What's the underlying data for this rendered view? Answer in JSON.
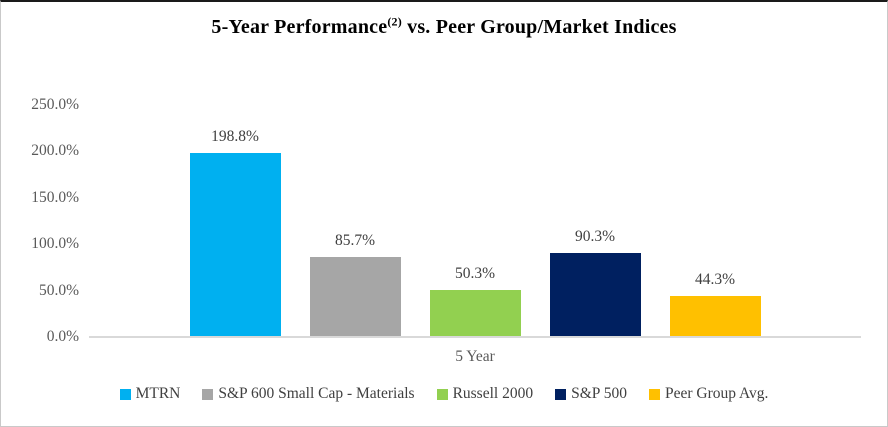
{
  "title": {
    "prefix": "5-Year Performance",
    "superscript": "(2)",
    "suffix": " vs. Peer Group/Market Indices"
  },
  "chart_data": {
    "type": "bar",
    "title": "5-Year Performance(2) vs. Peer Group/Market Indices",
    "categories": [
      "5 Year"
    ],
    "series": [
      {
        "name": "MTRN",
        "values": [
          198.8
        ],
        "label": "198.8%",
        "color": "#00B0F0"
      },
      {
        "name": "S&P 600 Small Cap - Materials",
        "values": [
          85.7
        ],
        "label": "85.7%",
        "color": "#A6A6A6"
      },
      {
        "name": "Russell 2000",
        "values": [
          50.3
        ],
        "label": "50.3%",
        "color": "#92D050"
      },
      {
        "name": "S&P 500",
        "values": [
          90.3
        ],
        "label": "90.3%",
        "color": "#002060"
      },
      {
        "name": "Peer Group Avg.",
        "values": [
          44.3
        ],
        "label": "44.3%",
        "color": "#FFC000"
      }
    ],
    "xlabel": "5 Year",
    "ylabel": "",
    "ylim": [
      0,
      250
    ],
    "ytick_step": 50,
    "ytick_labels_top_down": [
      "250.0%",
      "200.0%",
      "150.0%",
      "100.0%",
      "50.0%",
      "0.0%"
    ],
    "grid": false,
    "legend_position": "bottom",
    "axis_line_color": "#d9d9d9",
    "text_color": "#404040"
  }
}
